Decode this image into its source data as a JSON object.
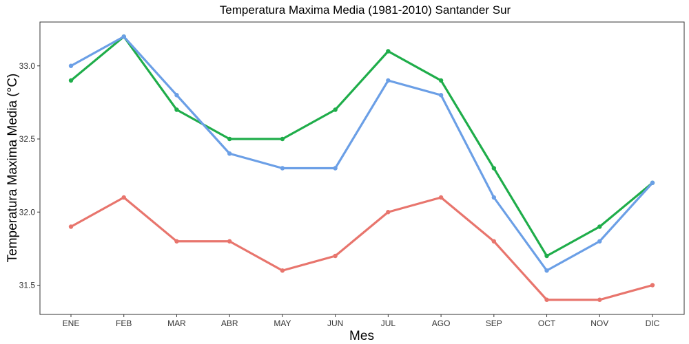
{
  "chart_data": {
    "type": "line",
    "title": "Temperatura Maxima Media (1981-2010)  Santander Sur",
    "xlabel": "Mes",
    "ylabel": "Temperatura Maxima Media  (°C)",
    "categories": [
      "ENE",
      "FEB",
      "MAR",
      "ABR",
      "MAY",
      "JUN",
      "JUL",
      "AGO",
      "SEP",
      "OCT",
      "NOV",
      "DIC"
    ],
    "ylim": [
      31.3,
      33.3
    ],
    "yticks": [
      31.5,
      32.0,
      32.5,
      33.0
    ],
    "ytick_labels": [
      "31.5",
      "32.0",
      "32.5",
      "33.0"
    ],
    "grid": false,
    "legend": "none",
    "series": [
      {
        "color": "#E8756D",
        "values": [
          31.9,
          32.1,
          31.8,
          31.8,
          31.6,
          31.7,
          32.0,
          32.1,
          31.8,
          31.4,
          31.4,
          31.5
        ]
      },
      {
        "color": "#1FAD4A",
        "values": [
          32.9,
          33.2,
          32.7,
          32.5,
          32.5,
          32.7,
          33.1,
          32.9,
          32.3,
          31.7,
          31.9,
          32.2
        ]
      },
      {
        "color": "#6B9FE6",
        "values": [
          33.0,
          33.2,
          32.8,
          32.4,
          32.3,
          32.3,
          32.9,
          32.8,
          32.1,
          31.6,
          31.8,
          32.2
        ]
      }
    ]
  }
}
